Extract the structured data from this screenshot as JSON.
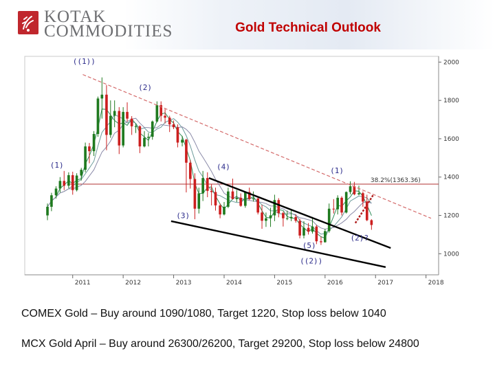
{
  "header": {
    "logo_lines": [
      "KOTAK",
      "COMMODITIES"
    ],
    "title": "Gold Technical Outlook"
  },
  "colors": {
    "title": "#c00000",
    "up_candle": "#1f7a1f",
    "down_candle": "#cc1f1f",
    "trend_line": "#d46a6a",
    "retracement_line": "#b03030",
    "channel_line": "#000000",
    "ma1": "#2e8b57",
    "ma2": "#6a9a9a",
    "ma3": "#8a8aa8",
    "wave_label": "#2a2a8a"
  },
  "chart_data": {
    "type": "candlestick",
    "title": "",
    "xlabel": "",
    "ylabel": "",
    "x_ticks": [
      "2011",
      "2012",
      "2013",
      "2014",
      "2015",
      "2016",
      "2017",
      "2018"
    ],
    "y_ticks": [
      1000,
      1200,
      1400,
      1600,
      1800,
      2000
    ],
    "xlim": [
      2010.05,
      2018.25
    ],
    "ylim": [
      890,
      2030
    ],
    "y_axis_side": "right",
    "grid": false,
    "retracement": {
      "label": "38.2%(1363.36)",
      "value": 1363.36
    },
    "wave_labels": [
      {
        "text": "((1))",
        "x": 2011.0,
        "y": 1990
      },
      {
        "text": "(2)",
        "x": 2012.3,
        "y": 1855
      },
      {
        "text": "(1)",
        "x": 2010.55,
        "y": 1450
      },
      {
        "text": "(4)",
        "x": 2013.85,
        "y": 1440
      },
      {
        "text": "(3)",
        "x": 2013.05,
        "y": 1185
      },
      {
        "text": "(1)",
        "x": 2016.1,
        "y": 1420
      },
      {
        "text": "(2)?",
        "x": 2016.5,
        "y": 1070
      },
      {
        "text": "(5)",
        "x": 2015.55,
        "y": 1030
      },
      {
        "text": "((2))",
        "x": 2015.5,
        "y": 950
      }
    ],
    "trend_lines": [
      {
        "name": "resistance",
        "from": [
          2011.2,
          1935
        ],
        "to": [
          2018.1,
          1185
        ]
      },
      {
        "name": "channel-upper",
        "from": [
          2013.7,
          1395
        ],
        "to": [
          2017.3,
          1030
        ]
      },
      {
        "name": "channel-lower",
        "from": [
          2012.95,
          1170
        ],
        "to": [
          2017.2,
          930
        ]
      }
    ],
    "projection": {
      "from": [
        2016.6,
        1160
      ],
      "to": [
        2016.95,
        1305
      ]
    },
    "candles": [
      {
        "t": 2010.5,
        "o": 1200,
        "h": 1262,
        "l": 1175,
        "c": 1245
      },
      {
        "t": 2010.58,
        "o": 1245,
        "h": 1318,
        "l": 1222,
        "c": 1305
      },
      {
        "t": 2010.67,
        "o": 1305,
        "h": 1352,
        "l": 1288,
        "c": 1340
      },
      {
        "t": 2010.75,
        "o": 1340,
        "h": 1400,
        "l": 1320,
        "c": 1380
      },
      {
        "t": 2010.83,
        "o": 1380,
        "h": 1432,
        "l": 1332,
        "c": 1355
      },
      {
        "t": 2010.92,
        "o": 1355,
        "h": 1425,
        "l": 1342,
        "c": 1410
      },
      {
        "t": 2011.0,
        "o": 1410,
        "h": 1428,
        "l": 1308,
        "c": 1332
      },
      {
        "t": 2011.08,
        "o": 1332,
        "h": 1420,
        "l": 1325,
        "c": 1408
      },
      {
        "t": 2011.17,
        "o": 1408,
        "h": 1448,
        "l": 1382,
        "c": 1438
      },
      {
        "t": 2011.25,
        "o": 1438,
        "h": 1580,
        "l": 1425,
        "c": 1560
      },
      {
        "t": 2011.33,
        "o": 1560,
        "h": 1578,
        "l": 1472,
        "c": 1535
      },
      {
        "t": 2011.42,
        "o": 1535,
        "h": 1640,
        "l": 1510,
        "c": 1625
      },
      {
        "t": 2011.5,
        "o": 1625,
        "h": 1820,
        "l": 1610,
        "c": 1810
      },
      {
        "t": 2011.58,
        "o": 1810,
        "h": 1920,
        "l": 1705,
        "c": 1830
      },
      {
        "t": 2011.67,
        "o": 1830,
        "h": 1880,
        "l": 1540,
        "c": 1620
      },
      {
        "t": 2011.75,
        "o": 1620,
        "h": 1800,
        "l": 1605,
        "c": 1720
      },
      {
        "t": 2011.83,
        "o": 1720,
        "h": 1800,
        "l": 1660,
        "c": 1745
      },
      {
        "t": 2011.92,
        "o": 1745,
        "h": 1765,
        "l": 1520,
        "c": 1565
      },
      {
        "t": 2012.0,
        "o": 1565,
        "h": 1765,
        "l": 1555,
        "c": 1740
      },
      {
        "t": 2012.08,
        "o": 1740,
        "h": 1790,
        "l": 1690,
        "c": 1705
      },
      {
        "t": 2012.17,
        "o": 1705,
        "h": 1718,
        "l": 1620,
        "c": 1665
      },
      {
        "t": 2012.25,
        "o": 1665,
        "h": 1680,
        "l": 1630,
        "c": 1665
      },
      {
        "t": 2012.33,
        "o": 1665,
        "h": 1670,
        "l": 1525,
        "c": 1560
      },
      {
        "t": 2012.42,
        "o": 1560,
        "h": 1640,
        "l": 1555,
        "c": 1605
      },
      {
        "t": 2012.5,
        "o": 1605,
        "h": 1630,
        "l": 1560,
        "c": 1610
      },
      {
        "t": 2012.58,
        "o": 1610,
        "h": 1695,
        "l": 1595,
        "c": 1690
      },
      {
        "t": 2012.67,
        "o": 1690,
        "h": 1795,
        "l": 1685,
        "c": 1775
      },
      {
        "t": 2012.75,
        "o": 1775,
        "h": 1795,
        "l": 1690,
        "c": 1720
      },
      {
        "t": 2012.83,
        "o": 1720,
        "h": 1755,
        "l": 1680,
        "c": 1710
      },
      {
        "t": 2012.92,
        "o": 1710,
        "h": 1720,
        "l": 1635,
        "c": 1675
      },
      {
        "t": 2013.0,
        "o": 1675,
        "h": 1695,
        "l": 1650,
        "c": 1660
      },
      {
        "t": 2013.08,
        "o": 1660,
        "h": 1675,
        "l": 1555,
        "c": 1580
      },
      {
        "t": 2013.17,
        "o": 1580,
        "h": 1615,
        "l": 1560,
        "c": 1595
      },
      {
        "t": 2013.25,
        "o": 1595,
        "h": 1600,
        "l": 1320,
        "c": 1475
      },
      {
        "t": 2013.33,
        "o": 1475,
        "h": 1488,
        "l": 1340,
        "c": 1390
      },
      {
        "t": 2013.42,
        "o": 1390,
        "h": 1420,
        "l": 1180,
        "c": 1235
      },
      {
        "t": 2013.5,
        "o": 1235,
        "h": 1345,
        "l": 1210,
        "c": 1315
      },
      {
        "t": 2013.58,
        "o": 1315,
        "h": 1432,
        "l": 1275,
        "c": 1395
      },
      {
        "t": 2013.67,
        "o": 1395,
        "h": 1425,
        "l": 1295,
        "c": 1328
      },
      {
        "t": 2013.75,
        "o": 1328,
        "h": 1362,
        "l": 1252,
        "c": 1322
      },
      {
        "t": 2013.83,
        "o": 1322,
        "h": 1345,
        "l": 1225,
        "c": 1252
      },
      {
        "t": 2013.92,
        "o": 1252,
        "h": 1262,
        "l": 1185,
        "c": 1205
      },
      {
        "t": 2014.0,
        "o": 1205,
        "h": 1270,
        "l": 1200,
        "c": 1245
      },
      {
        "t": 2014.08,
        "o": 1245,
        "h": 1345,
        "l": 1238,
        "c": 1325
      },
      {
        "t": 2014.17,
        "o": 1325,
        "h": 1392,
        "l": 1285,
        "c": 1285
      },
      {
        "t": 2014.25,
        "o": 1285,
        "h": 1332,
        "l": 1270,
        "c": 1292
      },
      {
        "t": 2014.33,
        "o": 1292,
        "h": 1315,
        "l": 1245,
        "c": 1250
      },
      {
        "t": 2014.42,
        "o": 1250,
        "h": 1325,
        "l": 1240,
        "c": 1322
      },
      {
        "t": 2014.5,
        "o": 1322,
        "h": 1345,
        "l": 1280,
        "c": 1285
      },
      {
        "t": 2014.58,
        "o": 1285,
        "h": 1325,
        "l": 1272,
        "c": 1288
      },
      {
        "t": 2014.67,
        "o": 1288,
        "h": 1295,
        "l": 1205,
        "c": 1215
      },
      {
        "t": 2014.75,
        "o": 1215,
        "h": 1255,
        "l": 1130,
        "c": 1172
      },
      {
        "t": 2014.83,
        "o": 1172,
        "h": 1215,
        "l": 1140,
        "c": 1185
      },
      {
        "t": 2014.92,
        "o": 1185,
        "h": 1240,
        "l": 1140,
        "c": 1200
      },
      {
        "t": 2015.0,
        "o": 1200,
        "h": 1308,
        "l": 1170,
        "c": 1280
      },
      {
        "t": 2015.08,
        "o": 1280,
        "h": 1290,
        "l": 1190,
        "c": 1212
      },
      {
        "t": 2015.17,
        "o": 1212,
        "h": 1220,
        "l": 1142,
        "c": 1185
      },
      {
        "t": 2015.25,
        "o": 1185,
        "h": 1225,
        "l": 1175,
        "c": 1185
      },
      {
        "t": 2015.33,
        "o": 1185,
        "h": 1232,
        "l": 1170,
        "c": 1192
      },
      {
        "t": 2015.42,
        "o": 1192,
        "h": 1205,
        "l": 1162,
        "c": 1172
      },
      {
        "t": 2015.5,
        "o": 1172,
        "h": 1182,
        "l": 1080,
        "c": 1095
      },
      {
        "t": 2015.58,
        "o": 1095,
        "h": 1170,
        "l": 1080,
        "c": 1135
      },
      {
        "t": 2015.67,
        "o": 1135,
        "h": 1160,
        "l": 1100,
        "c": 1115
      },
      {
        "t": 2015.75,
        "o": 1115,
        "h": 1192,
        "l": 1105,
        "c": 1142
      },
      {
        "t": 2015.83,
        "o": 1142,
        "h": 1150,
        "l": 1050,
        "c": 1065
      },
      {
        "t": 2015.92,
        "o": 1065,
        "h": 1090,
        "l": 1046,
        "c": 1060
      },
      {
        "t": 2016.0,
        "o": 1060,
        "h": 1130,
        "l": 1058,
        "c": 1118
      },
      {
        "t": 2016.08,
        "o": 1118,
        "h": 1262,
        "l": 1110,
        "c": 1235
      },
      {
        "t": 2016.17,
        "o": 1235,
        "h": 1285,
        "l": 1210,
        "c": 1232
      },
      {
        "t": 2016.25,
        "o": 1232,
        "h": 1305,
        "l": 1205,
        "c": 1292
      },
      {
        "t": 2016.33,
        "o": 1292,
        "h": 1300,
        "l": 1200,
        "c": 1215
      },
      {
        "t": 2016.42,
        "o": 1215,
        "h": 1325,
        "l": 1210,
        "c": 1322
      },
      {
        "t": 2016.5,
        "o": 1322,
        "h": 1378,
        "l": 1310,
        "c": 1352
      },
      {
        "t": 2016.58,
        "o": 1352,
        "h": 1375,
        "l": 1305,
        "c": 1310
      },
      {
        "t": 2016.67,
        "o": 1310,
        "h": 1355,
        "l": 1305,
        "c": 1316
      },
      {
        "t": 2016.75,
        "o": 1316,
        "h": 1325,
        "l": 1245,
        "c": 1272
      },
      {
        "t": 2016.83,
        "o": 1272,
        "h": 1308,
        "l": 1170,
        "c": 1175
      },
      {
        "t": 2016.92,
        "o": 1175,
        "h": 1180,
        "l": 1125,
        "c": 1150
      }
    ]
  },
  "notes": {
    "line1": "COMEX Gold – Buy around 1090/1080, Target 1220, Stop loss below 1040",
    "line2": "MCX Gold April – Buy around 26300/26200, Target 29200, Stop loss below 24800"
  }
}
